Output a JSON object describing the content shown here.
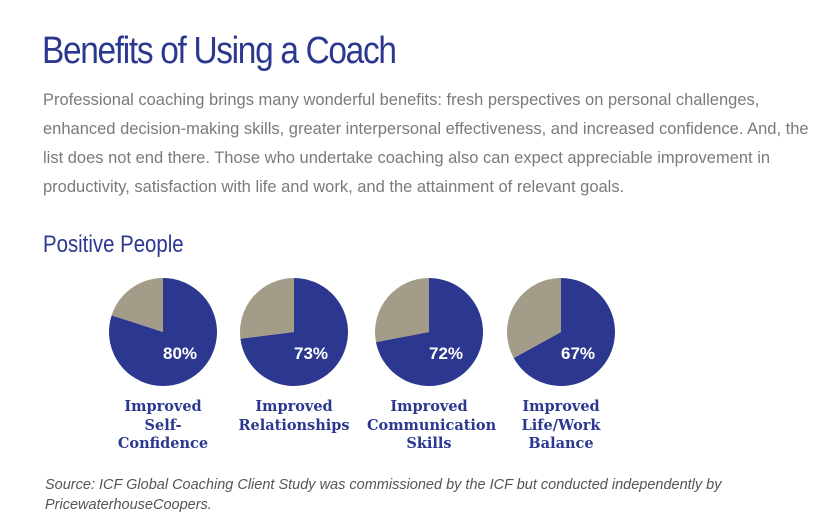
{
  "header": {
    "title": "Benefits of Using a Coach",
    "intro": "Professional coaching brings many wonderful benefits: fresh perspectives on personal challenges, enhanced decision-making skills, greater interpersonal effectiveness, and increased confidence. And, the list does not end there. Those who undertake coaching also can expect appreciable improvement in productivity, satisfaction with life and work, and the attainment of relevant goals."
  },
  "section_title": "Positive People",
  "chart_data": [
    {
      "type": "pie",
      "title": "Improved Self-Confidence",
      "values": [
        80,
        20
      ],
      "value_labels": [
        "80%",
        null
      ],
      "colors": [
        "#2c3890",
        "#a39c88"
      ]
    },
    {
      "type": "pie",
      "title": "Improved Relationships",
      "values": [
        73,
        27
      ],
      "value_labels": [
        "73%",
        null
      ],
      "colors": [
        "#2c3890",
        "#a39c88"
      ]
    },
    {
      "type": "pie",
      "title": "Improved Communication Skills",
      "values": [
        72,
        28
      ],
      "value_labels": [
        "72%",
        null
      ],
      "colors": [
        "#2c3890",
        "#a39c88"
      ]
    },
    {
      "type": "pie",
      "title": "Improved Life/Work Balance",
      "values": [
        67,
        33
      ],
      "value_labels": [
        "67%",
        null
      ],
      "colors": [
        "#2c3890",
        "#a39c88"
      ]
    }
  ],
  "source": "Source: ICF Global Coaching Client Study was commissioned by the ICF but conducted independently by PricewaterhouseCoopers."
}
